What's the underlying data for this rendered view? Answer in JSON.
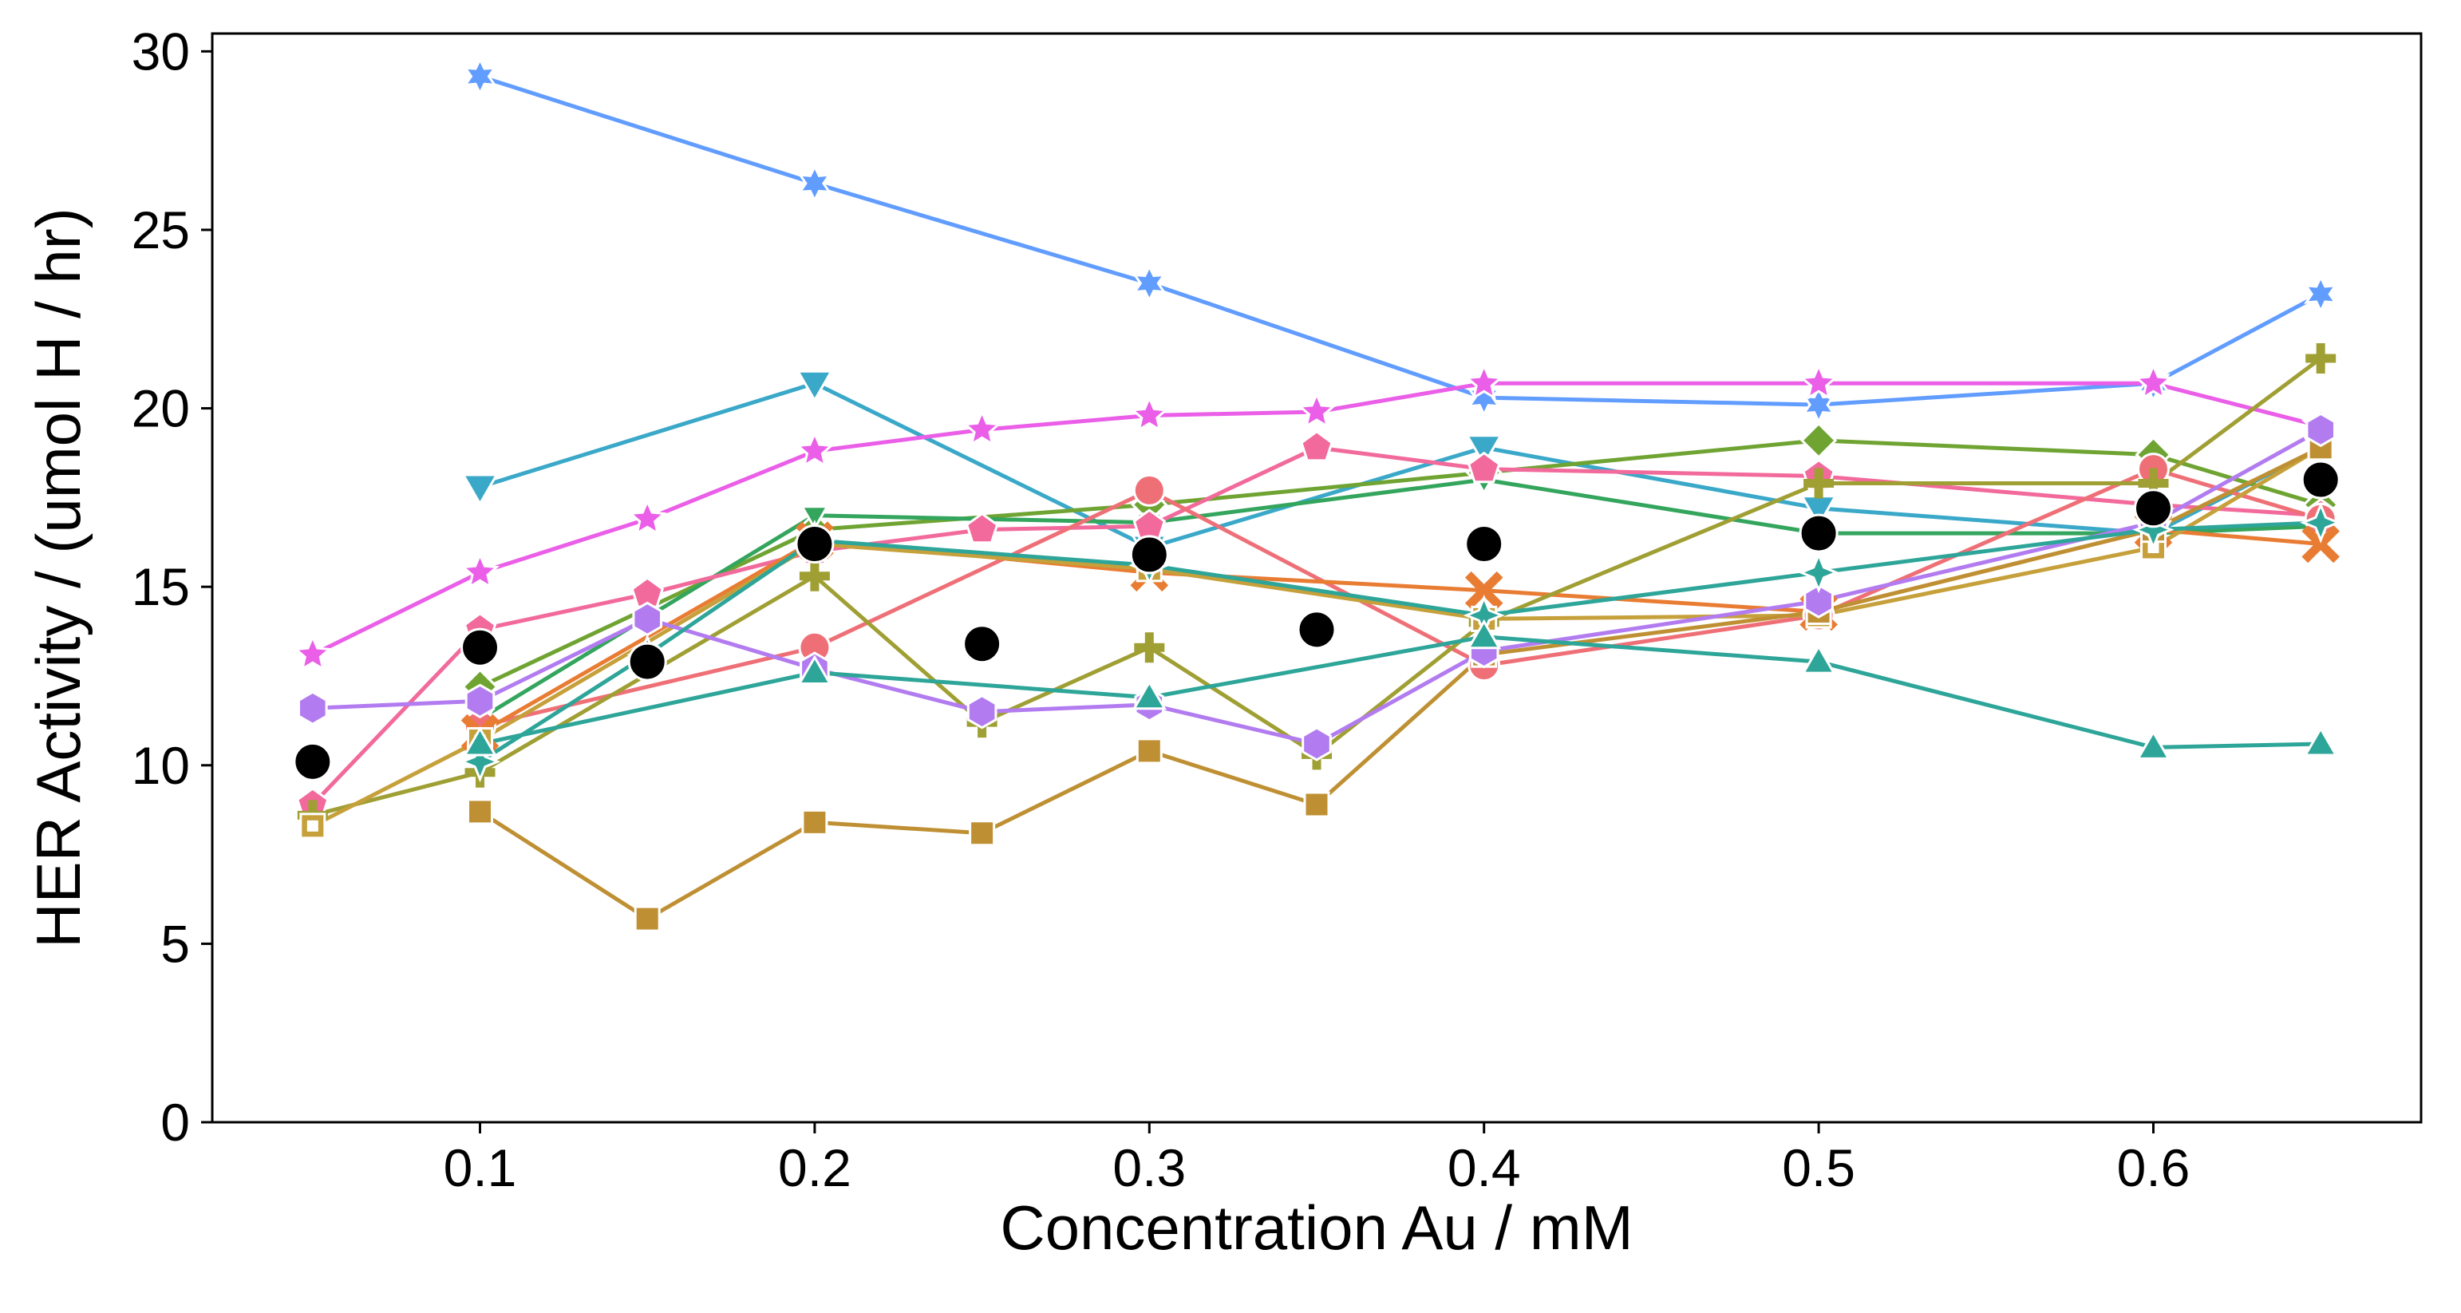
{
  "chart_data": {
    "type": "line",
    "title": "",
    "xlabel": "Concentration Au / mM",
    "ylabel": "HER Activity / (umol H / hr)",
    "xlim": [
      0.02,
      0.68
    ],
    "ylim": [
      0,
      30.5
    ],
    "x_ticks": [
      0.1,
      0.2,
      0.3,
      0.4,
      0.5,
      0.6
    ],
    "x_tick_labels": [
      "0.1",
      "0.2",
      "0.3",
      "0.4",
      "0.5",
      "0.6"
    ],
    "y_ticks": [
      0,
      5,
      10,
      15,
      20,
      25,
      30
    ],
    "y_tick_labels": [
      "0",
      "5",
      "10",
      "15",
      "20",
      "25",
      "30"
    ],
    "grid": false,
    "legend": "none",
    "series": [
      {
        "color": "#619cff",
        "marker": "star6",
        "points": [
          [
            0.1,
            29.3
          ],
          [
            0.2,
            26.3
          ],
          [
            0.3,
            23.5
          ],
          [
            0.4,
            20.3
          ],
          [
            0.5,
            20.1
          ],
          [
            0.6,
            20.7
          ],
          [
            0.65,
            23.2
          ]
        ]
      },
      {
        "color": "#3aa8c8",
        "marker": "tri-down",
        "points": [
          [
            0.1,
            17.8
          ],
          [
            0.2,
            20.7
          ],
          [
            0.3,
            16.1
          ],
          [
            0.4,
            18.9
          ],
          [
            0.5,
            17.2
          ],
          [
            0.6,
            16.5
          ],
          [
            0.65,
            18.9
          ]
        ]
      },
      {
        "color": "#ea5ee8",
        "marker": "star5",
        "points": [
          [
            0.05,
            13.1
          ],
          [
            0.1,
            15.4
          ],
          [
            0.15,
            16.9
          ],
          [
            0.2,
            18.8
          ],
          [
            0.25,
            19.4
          ],
          [
            0.3,
            19.8
          ],
          [
            0.35,
            19.9
          ],
          [
            0.4,
            20.7
          ],
          [
            0.5,
            20.7
          ],
          [
            0.6,
            20.7
          ],
          [
            0.65,
            19.5
          ]
        ]
      },
      {
        "color": "#6fa433",
        "marker": "diamond",
        "points": [
          [
            0.1,
            12.2
          ],
          [
            0.2,
            16.6
          ],
          [
            0.3,
            17.3
          ],
          [
            0.4,
            18.2
          ],
          [
            0.5,
            19.1
          ],
          [
            0.6,
            18.7
          ],
          [
            0.65,
            17.3
          ]
        ]
      },
      {
        "color": "#34a55d",
        "marker": "tri-down-small",
        "points": [
          [
            0.1,
            11.3
          ],
          [
            0.2,
            17.0
          ],
          [
            0.3,
            16.8
          ],
          [
            0.4,
            18.0
          ],
          [
            0.5,
            16.5
          ],
          [
            0.6,
            16.5
          ],
          [
            0.65,
            16.7
          ]
        ]
      },
      {
        "color": "#f26a9b",
        "marker": "pentagon",
        "points": [
          [
            0.05,
            8.9
          ],
          [
            0.1,
            13.8
          ],
          [
            0.15,
            14.8
          ],
          [
            0.2,
            16.0
          ],
          [
            0.25,
            16.6
          ],
          [
            0.3,
            16.7
          ],
          [
            0.35,
            18.9
          ],
          [
            0.4,
            18.3
          ],
          [
            0.5,
            18.1
          ],
          [
            0.6,
            17.3
          ],
          [
            0.65,
            17.0
          ]
        ]
      },
      {
        "color": "#ef6f77",
        "marker": "circle",
        "points": [
          [
            0.1,
            11.1
          ],
          [
            0.2,
            13.3
          ],
          [
            0.3,
            17.7
          ],
          [
            0.4,
            12.8
          ],
          [
            0.5,
            14.2
          ],
          [
            0.6,
            18.3
          ],
          [
            0.65,
            16.9
          ]
        ]
      },
      {
        "color": "#e97c33",
        "marker": "x",
        "points": [
          [
            0.1,
            10.9
          ],
          [
            0.2,
            16.3
          ],
          [
            0.3,
            15.4
          ],
          [
            0.4,
            14.9
          ],
          [
            0.5,
            14.3
          ],
          [
            0.6,
            16.6
          ],
          [
            0.65,
            16.2
          ]
        ]
      },
      {
        "color": "#9f9f34",
        "marker": "plus",
        "points": [
          [
            0.05,
            8.6
          ],
          [
            0.1,
            9.8
          ],
          [
            0.2,
            15.3
          ],
          [
            0.25,
            11.2
          ],
          [
            0.3,
            13.3
          ],
          [
            0.35,
            10.3
          ],
          [
            0.4,
            14.0
          ],
          [
            0.5,
            17.9
          ],
          [
            0.6,
            17.9
          ],
          [
            0.65,
            21.4
          ]
        ]
      },
      {
        "color": "#c6a03a",
        "marker": "square-hollow",
        "points": [
          [
            0.05,
            8.3
          ],
          [
            0.1,
            10.7
          ],
          [
            0.2,
            16.2
          ],
          [
            0.3,
            15.5
          ],
          [
            0.4,
            14.1
          ],
          [
            0.5,
            14.2
          ],
          [
            0.6,
            16.1
          ],
          [
            0.65,
            18.9
          ]
        ]
      },
      {
        "color": "#bf9033",
        "marker": "square",
        "points": [
          [
            0.1,
            8.7
          ],
          [
            0.15,
            5.7
          ],
          [
            0.2,
            8.4
          ],
          [
            0.25,
            8.1
          ],
          [
            0.3,
            10.4
          ],
          [
            0.35,
            8.9
          ],
          [
            0.4,
            13.1
          ],
          [
            0.5,
            14.3
          ],
          [
            0.6,
            16.6
          ],
          [
            0.65,
            18.9
          ]
        ]
      },
      {
        "color": "#b27cf0",
        "marker": "hexagon",
        "points": [
          [
            0.05,
            11.6
          ],
          [
            0.1,
            11.8
          ],
          [
            0.15,
            14.1
          ],
          [
            0.2,
            12.7
          ],
          [
            0.25,
            11.5
          ],
          [
            0.3,
            11.7
          ],
          [
            0.35,
            10.6
          ],
          [
            0.4,
            13.2
          ],
          [
            0.5,
            14.6
          ],
          [
            0.6,
            16.8
          ],
          [
            0.65,
            19.4
          ]
        ]
      },
      {
        "color": "#2ea599",
        "marker": "star4",
        "points": [
          [
            0.1,
            10.1
          ],
          [
            0.15,
            13.1
          ],
          [
            0.2,
            16.3
          ],
          [
            0.3,
            15.6
          ],
          [
            0.4,
            14.2
          ],
          [
            0.5,
            15.4
          ],
          [
            0.6,
            16.6
          ],
          [
            0.65,
            16.8
          ]
        ]
      },
      {
        "color": "#2ea599",
        "marker": "triangle",
        "points": [
          [
            0.1,
            10.6
          ],
          [
            0.2,
            12.6
          ],
          [
            0.3,
            11.9
          ],
          [
            0.4,
            13.6
          ],
          [
            0.5,
            12.9
          ],
          [
            0.6,
            10.5
          ],
          [
            0.65,
            10.6
          ]
        ]
      },
      {
        "color": "#000000",
        "marker": "circle-large",
        "line": false,
        "points": [
          [
            0.05,
            10.1
          ],
          [
            0.1,
            13.3
          ],
          [
            0.15,
            12.9
          ],
          [
            0.2,
            16.2
          ],
          [
            0.25,
            13.4
          ],
          [
            0.3,
            15.9
          ],
          [
            0.35,
            13.8
          ],
          [
            0.4,
            16.2
          ],
          [
            0.5,
            16.5
          ],
          [
            0.6,
            17.2
          ],
          [
            0.65,
            18.0
          ]
        ]
      }
    ]
  }
}
